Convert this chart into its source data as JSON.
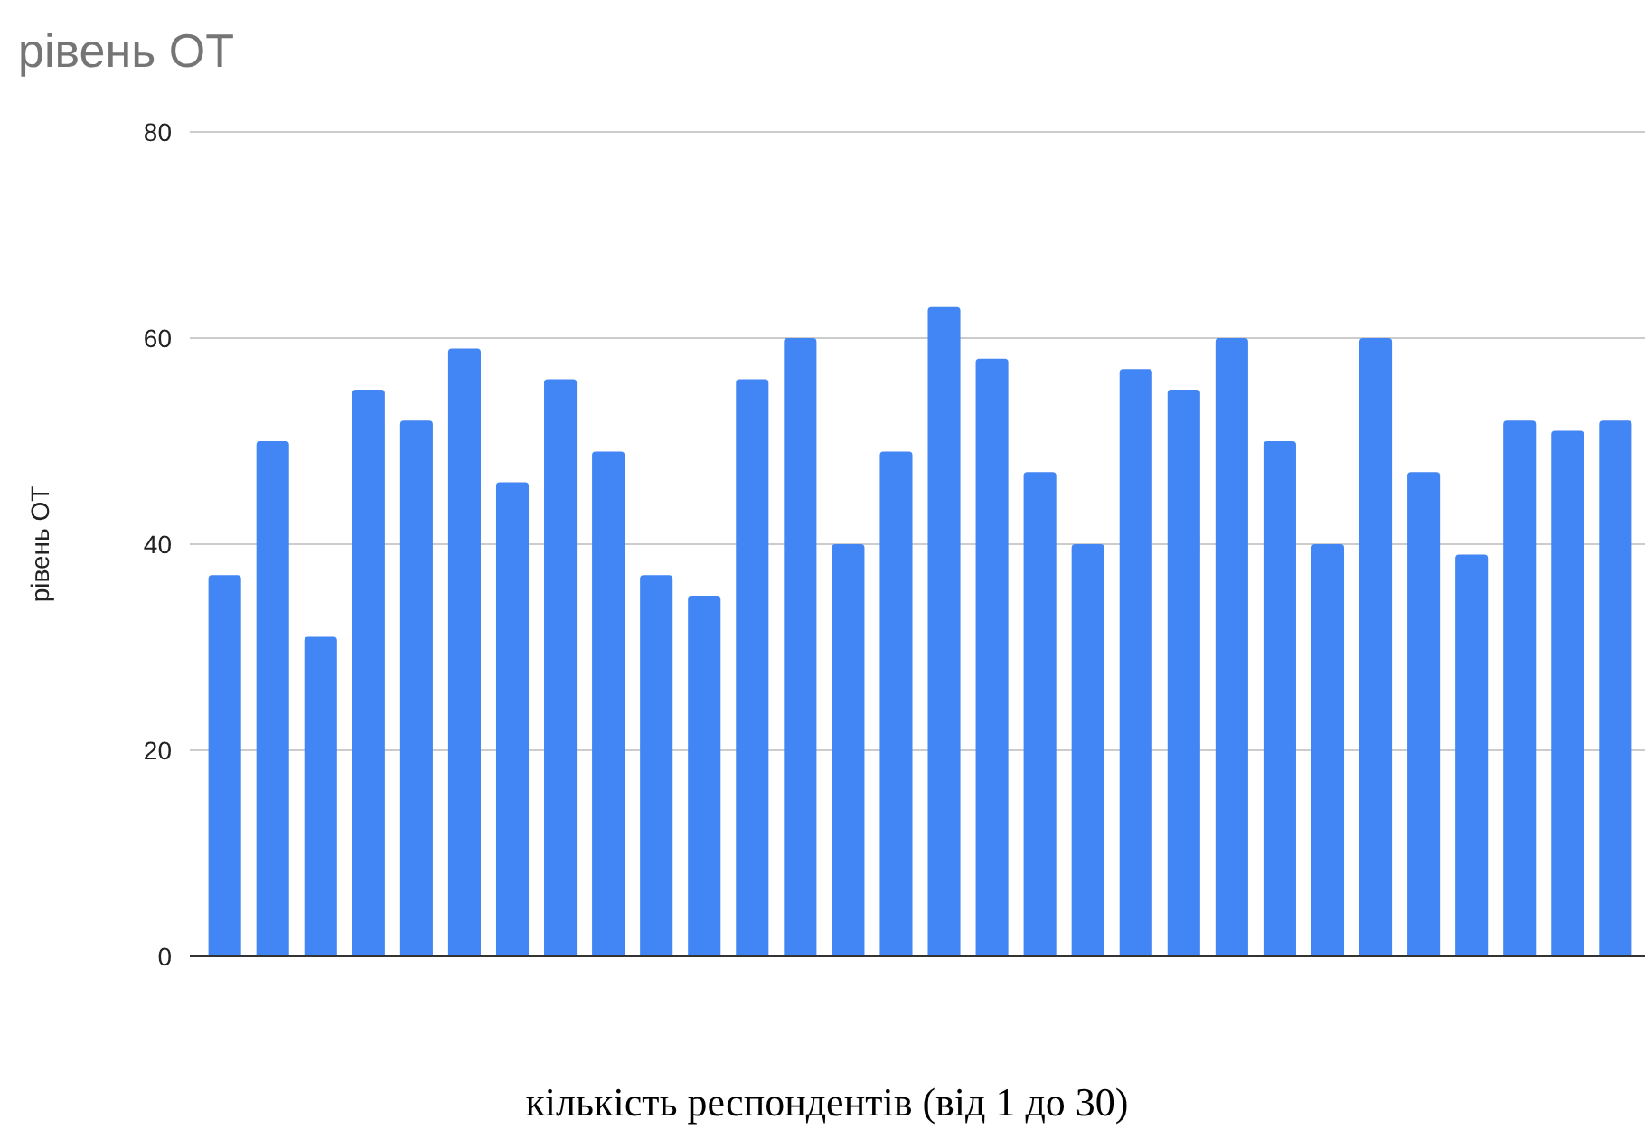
{
  "chart_data": {
    "type": "bar",
    "title": "рівень ОТ",
    "xlabel": "кількість респондентів (від 1 до 30)",
    "ylabel": "рівень ОТ",
    "categories": [
      null,
      null,
      null,
      null,
      null,
      null,
      null,
      null,
      null,
      null,
      null,
      null,
      null,
      null,
      null,
      null,
      null,
      null,
      null,
      null,
      null,
      null,
      null,
      null,
      null,
      null,
      null,
      null,
      null,
      null
    ],
    "values": [
      37,
      50,
      31,
      55,
      52,
      59,
      46,
      56,
      49,
      37,
      35,
      56,
      60,
      40,
      49,
      63,
      58,
      47,
      40,
      57,
      55,
      60,
      50,
      40,
      60,
      47,
      39,
      52,
      51,
      52
    ],
    "color": "#4285f4",
    "ylim": [
      0,
      80
    ],
    "yticks": [
      0,
      20,
      40,
      60,
      80
    ],
    "grid": "y"
  }
}
